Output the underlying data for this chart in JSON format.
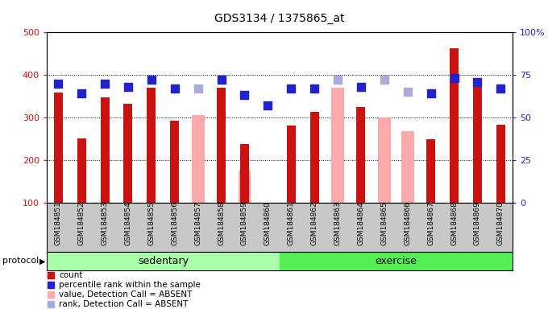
{
  "title": "GDS3134 / 1375865_at",
  "samples": [
    "GSM184851",
    "GSM184852",
    "GSM184853",
    "GSM184854",
    "GSM184855",
    "GSM184856",
    "GSM184857",
    "GSM184858",
    "GSM184859",
    "GSM184860",
    "GSM184861",
    "GSM184862",
    "GSM184863",
    "GSM184864",
    "GSM184865",
    "GSM184866",
    "GSM184867",
    "GSM184868",
    "GSM184869",
    "GSM184870"
  ],
  "count_values": [
    358,
    250,
    348,
    332,
    370,
    292,
    null,
    370,
    238,
    null,
    280,
    313,
    null,
    325,
    null,
    null,
    248,
    462,
    382,
    282
  ],
  "absent_values": [
    null,
    null,
    null,
    null,
    null,
    null,
    305,
    null,
    175,
    null,
    null,
    null,
    370,
    null,
    300,
    268,
    null,
    null,
    null,
    null
  ],
  "percentile_values": [
    70,
    64,
    70,
    68,
    72,
    67,
    null,
    72,
    63,
    57,
    67,
    67,
    null,
    68,
    null,
    null,
    64,
    73,
    71,
    67
  ],
  "absent_rank_values": [
    null,
    null,
    null,
    null,
    null,
    null,
    67,
    null,
    null,
    null,
    null,
    null,
    72,
    null,
    72,
    65,
    null,
    null,
    null,
    null
  ],
  "sedentary_count": 10,
  "exercise_count": 10,
  "ylim_left": [
    100,
    500
  ],
  "ylim_right": [
    0,
    100
  ],
  "yticks_left": [
    100,
    200,
    300,
    400,
    500
  ],
  "yticks_right": [
    0,
    25,
    50,
    75,
    100
  ],
  "ytick_labels_right": [
    "0",
    "25",
    "50",
    "75",
    "100%"
  ],
  "count_color": "#cc1111",
  "absent_color": "#ffaaaa",
  "percentile_color": "#2222cc",
  "absent_rank_color": "#aaaadd",
  "dot_size": 55,
  "sedentary_color": "#aaffaa",
  "exercise_color": "#55ee55",
  "protocol_label": "protocol",
  "sedentary_label": "sedentary",
  "exercise_label": "exercise",
  "tick_area_color": "#c8c8c8",
  "legend_items": [
    {
      "color": "#cc1111",
      "label": "count"
    },
    {
      "color": "#2222cc",
      "label": "percentile rank within the sample"
    },
    {
      "color": "#ffaaaa",
      "label": "value, Detection Call = ABSENT"
    },
    {
      "color": "#aaaadd",
      "label": "rank, Detection Call = ABSENT"
    }
  ]
}
